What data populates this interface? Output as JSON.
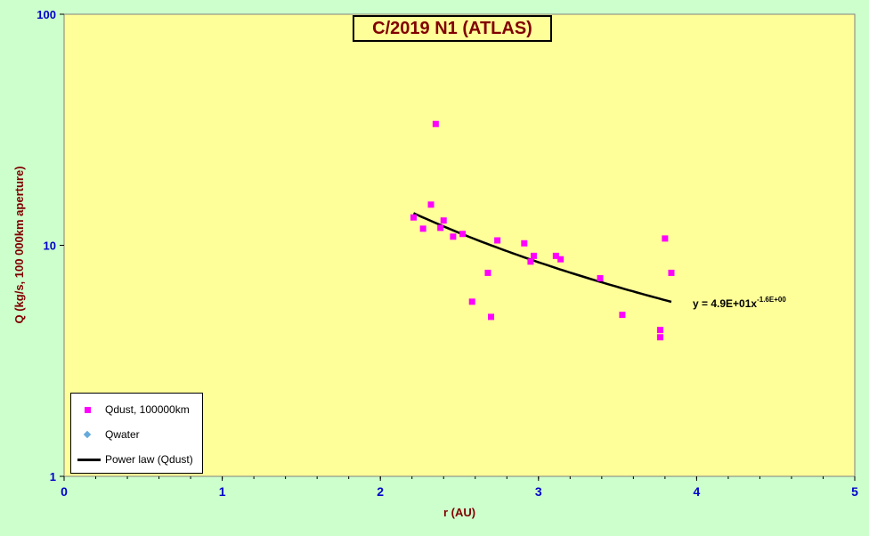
{
  "chart_data": {
    "type": "scatter",
    "title": "C/2019 N1 (ATLAS)",
    "xlabel": "r (AU)",
    "ylabel": "Q (kg/s, 100 000km aperture)",
    "xlim": [
      0,
      5
    ],
    "ylim": [
      1,
      100
    ],
    "yscale": "log",
    "x_ticks": [
      "0",
      "1",
      "2",
      "3",
      "4",
      "5"
    ],
    "y_ticks": [
      "1",
      "10",
      "100"
    ],
    "series": [
      {
        "name": "Qdust, 100000km",
        "color": "#ff00ff",
        "marker": "square",
        "points": [
          {
            "x": 2.21,
            "y": 13.2
          },
          {
            "x": 2.27,
            "y": 11.8
          },
          {
            "x": 2.32,
            "y": 15.0
          },
          {
            "x": 2.35,
            "y": 33.5
          },
          {
            "x": 2.38,
            "y": 11.9
          },
          {
            "x": 2.4,
            "y": 12.8
          },
          {
            "x": 2.46,
            "y": 10.9
          },
          {
            "x": 2.52,
            "y": 11.2
          },
          {
            "x": 2.58,
            "y": 5.7
          },
          {
            "x": 2.68,
            "y": 7.6
          },
          {
            "x": 2.7,
            "y": 4.9
          },
          {
            "x": 2.74,
            "y": 10.5
          },
          {
            "x": 2.91,
            "y": 10.2
          },
          {
            "x": 2.95,
            "y": 8.5
          },
          {
            "x": 2.97,
            "y": 9.0
          },
          {
            "x": 3.11,
            "y": 9.0
          },
          {
            "x": 3.14,
            "y": 8.7
          },
          {
            "x": 3.39,
            "y": 7.2
          },
          {
            "x": 3.53,
            "y": 5.0
          },
          {
            "x": 3.77,
            "y": 4.3
          },
          {
            "x": 3.77,
            "y": 4.0
          },
          {
            "x": 3.8,
            "y": 10.7
          },
          {
            "x": 3.84,
            "y": 7.6
          }
        ]
      },
      {
        "name": "Qwater",
        "color": "#66aadd",
        "marker": "diamond",
        "points": []
      }
    ],
    "trendline": {
      "name": "Power law (Qdust)",
      "color": "#000000",
      "a": 49,
      "b": -1.6,
      "x_range": [
        2.21,
        3.84
      ],
      "label_main": "y = 4.9E+01x",
      "label_exp": "-1.6E+00"
    },
    "legend_position": "bottom-left",
    "plot_background": "#ffff99",
    "chart_background": "#ccffcc"
  }
}
